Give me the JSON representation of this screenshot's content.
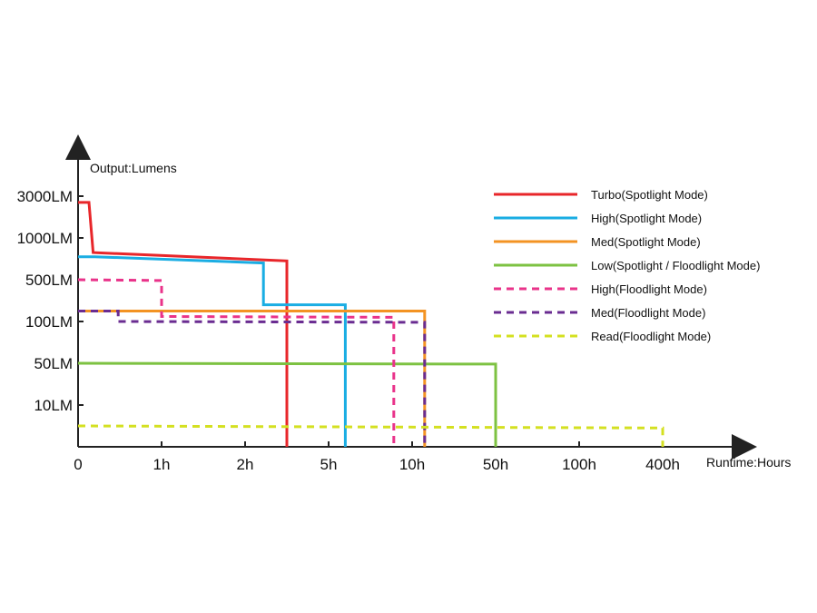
{
  "chart_data": {
    "type": "line",
    "xlabel": "Runtime:Hours",
    "ylabel": "Output:Lumens",
    "x_tick_labels": [
      "0",
      "1h",
      "2h",
      "5h",
      "10h",
      "50h",
      "100h",
      "400h"
    ],
    "y_tick_labels": [
      "3000LM",
      "1000LM",
      "500LM",
      "100LM",
      "50LM",
      "10LM"
    ],
    "x_scale": "categorical-step (tick positions 0-7)",
    "y_scale": "categorical-step (tick positions 0-6, 0 = baseline)",
    "series": [
      {
        "name": "Turbo(Spotlight Mode)",
        "color": "#e8262a",
        "dash": "solid",
        "points": [
          [
            0,
            5.85
          ],
          [
            0.13,
            5.85
          ],
          [
            0.18,
            4.65
          ],
          [
            2.5,
            4.45
          ],
          [
            2.5,
            0
          ]
        ]
      },
      {
        "name": "High(Spotlight Mode)",
        "color": "#1aade3",
        "dash": "solid",
        "points": [
          [
            0,
            4.55
          ],
          [
            0.2,
            4.55
          ],
          [
            2.22,
            4.4
          ],
          [
            2.22,
            3.4
          ],
          [
            3.2,
            3.4
          ],
          [
            3.2,
            0
          ]
        ]
      },
      {
        "name": "Med(Spotlight Mode)",
        "color": "#f39323",
        "dash": "solid",
        "points": [
          [
            0,
            3.25
          ],
          [
            4.15,
            3.25
          ],
          [
            4.15,
            0
          ]
        ]
      },
      {
        "name": "Low(Spotlight / Floodlight Mode)",
        "color": "#7dc242",
        "dash": "solid",
        "points": [
          [
            0,
            2.0
          ],
          [
            5.0,
            1.98
          ],
          [
            5.0,
            0
          ]
        ]
      },
      {
        "name": "High(Floodlight Mode)",
        "color": "#e9338a",
        "dash": "dashed",
        "points": [
          [
            0,
            4.0
          ],
          [
            1.0,
            3.98
          ],
          [
            1.0,
            3.12
          ],
          [
            3.78,
            3.1
          ],
          [
            3.78,
            0
          ]
        ]
      },
      {
        "name": "Med(Floodlight Mode)",
        "color": "#6a2c91",
        "dash": "dashed",
        "points": [
          [
            0,
            3.25
          ],
          [
            0.48,
            3.25
          ],
          [
            0.48,
            3.0
          ],
          [
            4.15,
            2.98
          ],
          [
            4.15,
            0
          ]
        ]
      },
      {
        "name": "Read(Floodlight Mode)",
        "color": "#d4e021",
        "dash": "dashed",
        "points": [
          [
            0,
            0.5
          ],
          [
            7.0,
            0.45
          ],
          [
            7.0,
            0
          ]
        ]
      }
    ]
  }
}
